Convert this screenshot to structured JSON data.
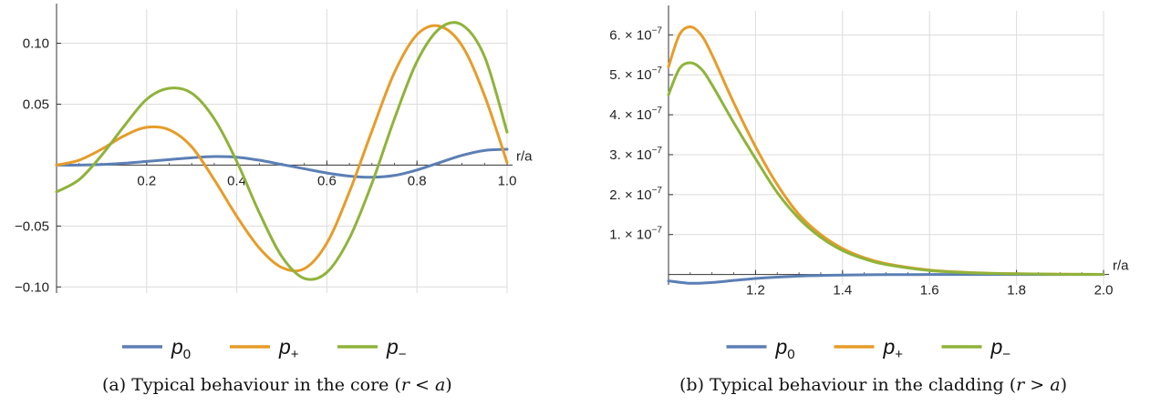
{
  "chart_data": [
    {
      "type": "line",
      "panel": "(a)",
      "xlabel": "r/a",
      "ylabel": "",
      "xlim": [
        0.0,
        1.0
      ],
      "ylim": [
        -0.105,
        0.128
      ],
      "grid": true,
      "legend_placement": "bottom",
      "x_ticks": [
        0.2,
        0.4,
        0.6,
        0.8,
        1.0
      ],
      "x_tick_labels": [
        "0.2",
        "0.4",
        "0.6",
        "0.8",
        "1.0"
      ],
      "y_ticks": [
        -0.1,
        -0.05,
        0.05,
        0.1
      ],
      "y_tick_labels": [
        "−0.10",
        "−0.05",
        "0.05",
        "0.10"
      ],
      "series": [
        {
          "name": "p0",
          "color": "#5b7fb5",
          "x": [
            0.0,
            0.05,
            0.1,
            0.15,
            0.2,
            0.25,
            0.3,
            0.35,
            0.4,
            0.45,
            0.5,
            0.55,
            0.6,
            0.65,
            0.7,
            0.75,
            0.8,
            0.85,
            0.9,
            0.95,
            1.0
          ],
          "y": [
            0.0,
            0.0,
            0.0005,
            0.0015,
            0.003,
            0.0045,
            0.006,
            0.007,
            0.0065,
            0.004,
            0.0005,
            -0.003,
            -0.0065,
            -0.009,
            -0.01,
            -0.0085,
            -0.004,
            0.002,
            0.008,
            0.012,
            0.013
          ]
        },
        {
          "name": "p+",
          "color": "#e69c29",
          "x": [
            0.0,
            0.05,
            0.1,
            0.15,
            0.2,
            0.25,
            0.3,
            0.35,
            0.4,
            0.45,
            0.5,
            0.55,
            0.6,
            0.65,
            0.7,
            0.75,
            0.8,
            0.85,
            0.9,
            0.95,
            1.0
          ],
          "y": [
            0.0,
            0.004,
            0.013,
            0.024,
            0.031,
            0.029,
            0.015,
            -0.012,
            -0.042,
            -0.068,
            -0.084,
            -0.085,
            -0.064,
            -0.022,
            0.028,
            0.076,
            0.107,
            0.114,
            0.098,
            0.057,
            0.002
          ]
        },
        {
          "name": "p−",
          "color": "#8fb33a",
          "x": [
            0.0,
            0.05,
            0.1,
            0.15,
            0.2,
            0.25,
            0.3,
            0.35,
            0.4,
            0.45,
            0.5,
            0.55,
            0.6,
            0.65,
            0.7,
            0.75,
            0.8,
            0.85,
            0.9,
            0.95,
            1.0
          ],
          "y": [
            -0.022,
            -0.012,
            0.008,
            0.032,
            0.054,
            0.063,
            0.059,
            0.038,
            0.003,
            -0.039,
            -0.075,
            -0.093,
            -0.088,
            -0.06,
            -0.015,
            0.038,
            0.085,
            0.112,
            0.115,
            0.089,
            0.027
          ]
        }
      ]
    },
    {
      "type": "line",
      "panel": "(b)",
      "xlabel": "r/a",
      "ylabel": "",
      "xlim": [
        1.0,
        2.0
      ],
      "ylim": [
        -2.6e-08,
        6.6e-07
      ],
      "grid": true,
      "legend_placement": "bottom",
      "x_ticks": [
        1.2,
        1.4,
        1.6,
        1.8,
        2.0
      ],
      "x_tick_labels": [
        "1.2",
        "1.4",
        "1.6",
        "1.8",
        "2.0"
      ],
      "y_ticks": [
        1e-07,
        2e-07,
        3e-07,
        4e-07,
        5e-07,
        6e-07
      ],
      "y_tick_mantissas": [
        "1.",
        "2.",
        "3.",
        "4.",
        "5.",
        "6."
      ],
      "y_tick_times": "×",
      "y_tick_base": "10",
      "y_tick_exponent": "−7",
      "series": [
        {
          "name": "p0",
          "color": "#5b7fb5",
          "x": [
            1.0,
            1.05,
            1.1,
            1.15,
            1.2,
            1.25,
            1.3,
            1.35,
            1.4,
            1.5,
            1.6,
            1.7,
            1.8,
            1.9,
            2.0
          ],
          "y": [
            -1.6e-08,
            -2.2e-08,
            -2e-08,
            -1.5e-08,
            -1e-08,
            -6.5e-09,
            -4e-09,
            -2.5e-09,
            -1.5e-09,
            -5e-10,
            -2e-10,
            -1e-10,
            0,
            0,
            0
          ]
        },
        {
          "name": "p+",
          "color": "#e69c29",
          "x": [
            1.0,
            1.025,
            1.05,
            1.075,
            1.1,
            1.15,
            1.2,
            1.25,
            1.3,
            1.35,
            1.4,
            1.45,
            1.5,
            1.6,
            1.7,
            1.8,
            1.9,
            2.0
          ],
          "y": [
            5.2e-07,
            6e-07,
            6.2e-07,
            6e-07,
            5.5e-07,
            4.3e-07,
            3.2e-07,
            2.25e-07,
            1.5e-07,
            1e-07,
            6.5e-08,
            4.2e-08,
            2.7e-08,
            1.1e-08,
            4.5e-09,
            1.8e-09,
            7e-10,
            3e-10
          ]
        },
        {
          "name": "p−",
          "color": "#8fb33a",
          "x": [
            1.0,
            1.025,
            1.05,
            1.075,
            1.1,
            1.15,
            1.2,
            1.25,
            1.3,
            1.35,
            1.4,
            1.45,
            1.5,
            1.6,
            1.7,
            1.8,
            1.9,
            2.0
          ],
          "y": [
            4.5e-07,
            5.15e-07,
            5.3e-07,
            5.15e-07,
            4.75e-07,
            3.8e-07,
            2.9e-07,
            2.05e-07,
            1.4e-07,
            9.3e-08,
            6e-08,
            3.9e-08,
            2.5e-08,
            1e-08,
            4e-09,
            1.6e-09,
            6e-10,
            2.5e-10
          ]
        }
      ]
    }
  ],
  "legend": [
    {
      "base": "p",
      "sub": "0",
      "color": "#5b7fb5"
    },
    {
      "base": "p",
      "sub": "+",
      "color": "#e69c29"
    },
    {
      "base": "p",
      "sub": "−",
      "color": "#8fb33a"
    }
  ],
  "captions": {
    "a": {
      "prefix": "(a) Typical behaviour in the core (",
      "math": "r < a",
      "suffix": ")"
    },
    "b": {
      "prefix": "(b) Typical behaviour in the cladding (",
      "math": "r > a",
      "suffix": ")"
    }
  }
}
